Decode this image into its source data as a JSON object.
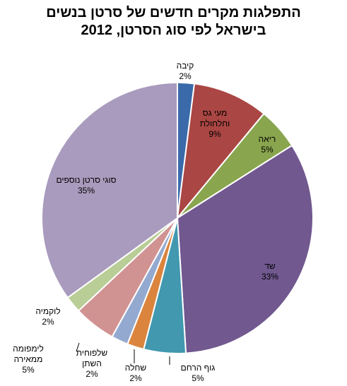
{
  "chart_data": {
    "type": "pie",
    "title_lines": [
      "התפלגות מקרים חדשים של סרטן בנשים",
      "בישראל לפי סוג הסרטן, 2012"
    ],
    "slices": [
      {
        "label_lines": [
          "קיבה"
        ],
        "value": 2,
        "value_label": "2%",
        "color": "#3b6aaa"
      },
      {
        "label_lines": [
          "מעי גס",
          "וחלחולת"
        ],
        "value": 9,
        "value_label": "9%",
        "color": "#aa4643"
      },
      {
        "label_lines": [
          "ריאה"
        ],
        "value": 5,
        "value_label": "5%",
        "color": "#89a54e"
      },
      {
        "label_lines": [
          "שד"
        ],
        "value": 33,
        "value_label": "33%",
        "color": "#71588f"
      },
      {
        "label_lines": [
          "גוף הרחם"
        ],
        "value": 5,
        "value_label": "5%",
        "color": "#4198af"
      },
      {
        "label_lines": [
          "שחלה"
        ],
        "value": 2,
        "value_label": "2%",
        "color": "#db843d"
      },
      {
        "label_lines": [
          "שלפוחית",
          "השתן"
        ],
        "value": 2,
        "value_label": "2%",
        "color": "#93a9cf"
      },
      {
        "label_lines": [
          "לימפומה",
          "ממאירה"
        ],
        "value": 5,
        "value_label": "5%",
        "color": "#d19392"
      },
      {
        "label_lines": [
          "לוקמיה"
        ],
        "value": 2,
        "value_label": "2%",
        "color": "#b9cd96"
      },
      {
        "label_lines": [
          "סוגי סרטן נוספים"
        ],
        "value": 35,
        "value_label": "35%",
        "color": "#a99bbd"
      }
    ]
  }
}
